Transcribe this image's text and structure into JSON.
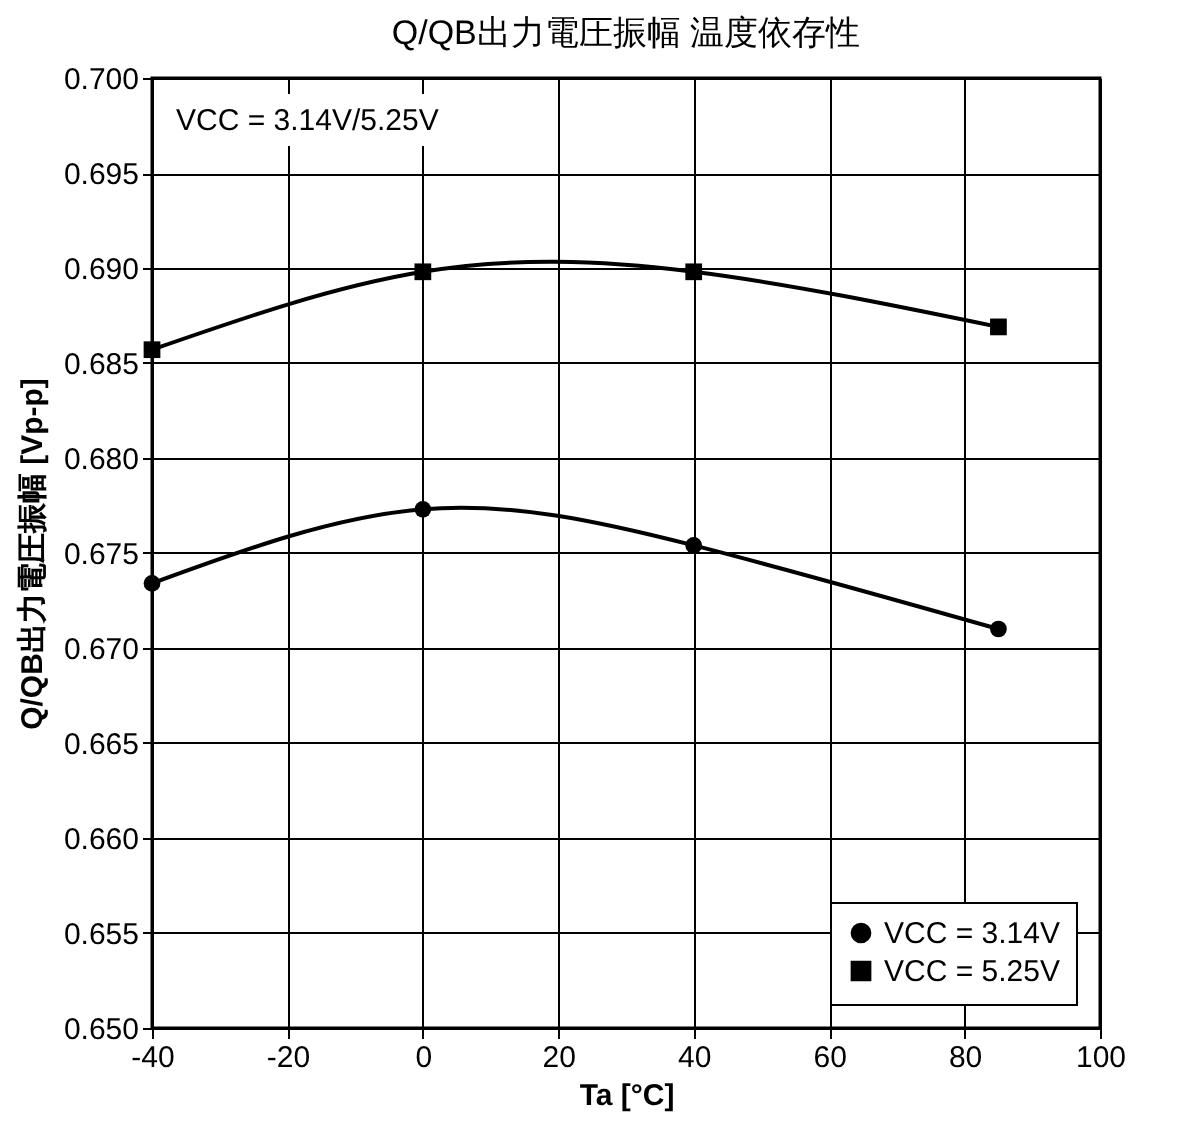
{
  "chart_data": {
    "type": "line",
    "title": "Q/QB出力電圧振幅 温度依存性",
    "xlabel": "Ta [°C]",
    "ylabel": "Q/QB出力電圧振幅 [Vp-p]",
    "x": [
      -40,
      0,
      40,
      85
    ],
    "series": [
      {
        "name": "VCC = 3.14V",
        "color": "#000000",
        "marker": "circle",
        "values": [
          0.6734,
          0.6773,
          0.6754,
          0.671
        ]
      },
      {
        "name": "VCC = 5.25V",
        "color": "#000000",
        "marker": "square",
        "values": [
          0.6857,
          0.6898,
          0.6898,
          0.6869
        ]
      }
    ],
    "xlim": [
      -40,
      100
    ],
    "xticks": [
      -40,
      -20,
      0,
      20,
      40,
      60,
      80,
      100
    ],
    "ylim": [
      0.65,
      0.7
    ],
    "yticks": [
      {
        "value": 0.65,
        "label": "0.650"
      },
      {
        "value": 0.655,
        "label": "0.655"
      },
      {
        "value": 0.66,
        "label": "0.660"
      },
      {
        "value": 0.665,
        "label": "0.665"
      },
      {
        "value": 0.67,
        "label": "0.670"
      },
      {
        "value": 0.675,
        "label": "0.675"
      },
      {
        "value": 0.68,
        "label": "0.680"
      },
      {
        "value": 0.685,
        "label": "0.685"
      },
      {
        "value": 0.69,
        "label": "0.690"
      },
      {
        "value": 0.695,
        "label": "0.695"
      },
      {
        "value": 0.7,
        "label": "0.700"
      }
    ],
    "grid": true,
    "legend": "bottom right",
    "line_style": "solid",
    "annotations": [
      "VCC = 3.14V/5.25V"
    ]
  }
}
